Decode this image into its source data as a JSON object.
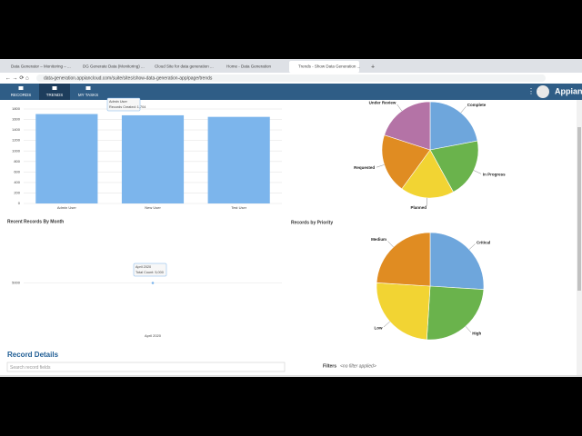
{
  "browser": {
    "tabs": [
      "Data Generator – Monitoring – ...",
      "DG Generate Data (Monitoring) ...",
      "Cloud Site for data generation ...",
      "Home - Data Generation",
      "Trends - Show Data Generation ..."
    ],
    "url": "data-generation.appiancloud.com/suite/sites/show-data-generation-app/page/trends"
  },
  "nav": {
    "items": [
      "RECORDS",
      "TRENDS",
      "MY TASKS"
    ],
    "brand": "Appian"
  },
  "chart_data": [
    {
      "type": "bar",
      "categories": [
        "Admin User",
        "New User",
        "Test User"
      ],
      "values": [
        1704,
        1680,
        1650
      ],
      "color": "#7cb5ec",
      "ylim": [
        0,
        1800
      ],
      "yticks": [
        0,
        200,
        400,
        600,
        800,
        1000,
        1200,
        1400,
        1600,
        1800
      ],
      "grid": true,
      "tooltip": {
        "title": "Admin User",
        "text": "Records Created: 1,704"
      }
    },
    {
      "type": "pie",
      "categories": [
        "Complete",
        "In Progress",
        "Planned",
        "Requested",
        "Under Review"
      ],
      "values": [
        22,
        20,
        18,
        20,
        20
      ],
      "colors": [
        "#6ea6dc",
        "#6ab34c",
        "#f2d433",
        "#e08c22",
        "#b473a6"
      ]
    },
    {
      "type": "line",
      "title": "Recent Records By Month",
      "categories": [
        "April 2020"
      ],
      "values": [
        5000
      ],
      "color": "#7cb5ec",
      "ylim": [
        0,
        10000
      ],
      "yticks": [
        5000
      ],
      "grid": true,
      "tooltip": {
        "title": "April 2020",
        "text": "Total Count: 5,000"
      }
    },
    {
      "type": "pie",
      "title": "Records by Priority",
      "categories": [
        "Critical",
        "High",
        "Low",
        "Medium"
      ],
      "values": [
        26,
        25,
        25,
        24
      ],
      "colors": [
        "#6ea6dc",
        "#6ab34c",
        "#f2d433",
        "#e08c22"
      ]
    }
  ],
  "details": {
    "title": "Record Details",
    "search_placeholder": "Search record fields",
    "filters_label": "Filters",
    "filters_value": "<no filter applied>"
  }
}
